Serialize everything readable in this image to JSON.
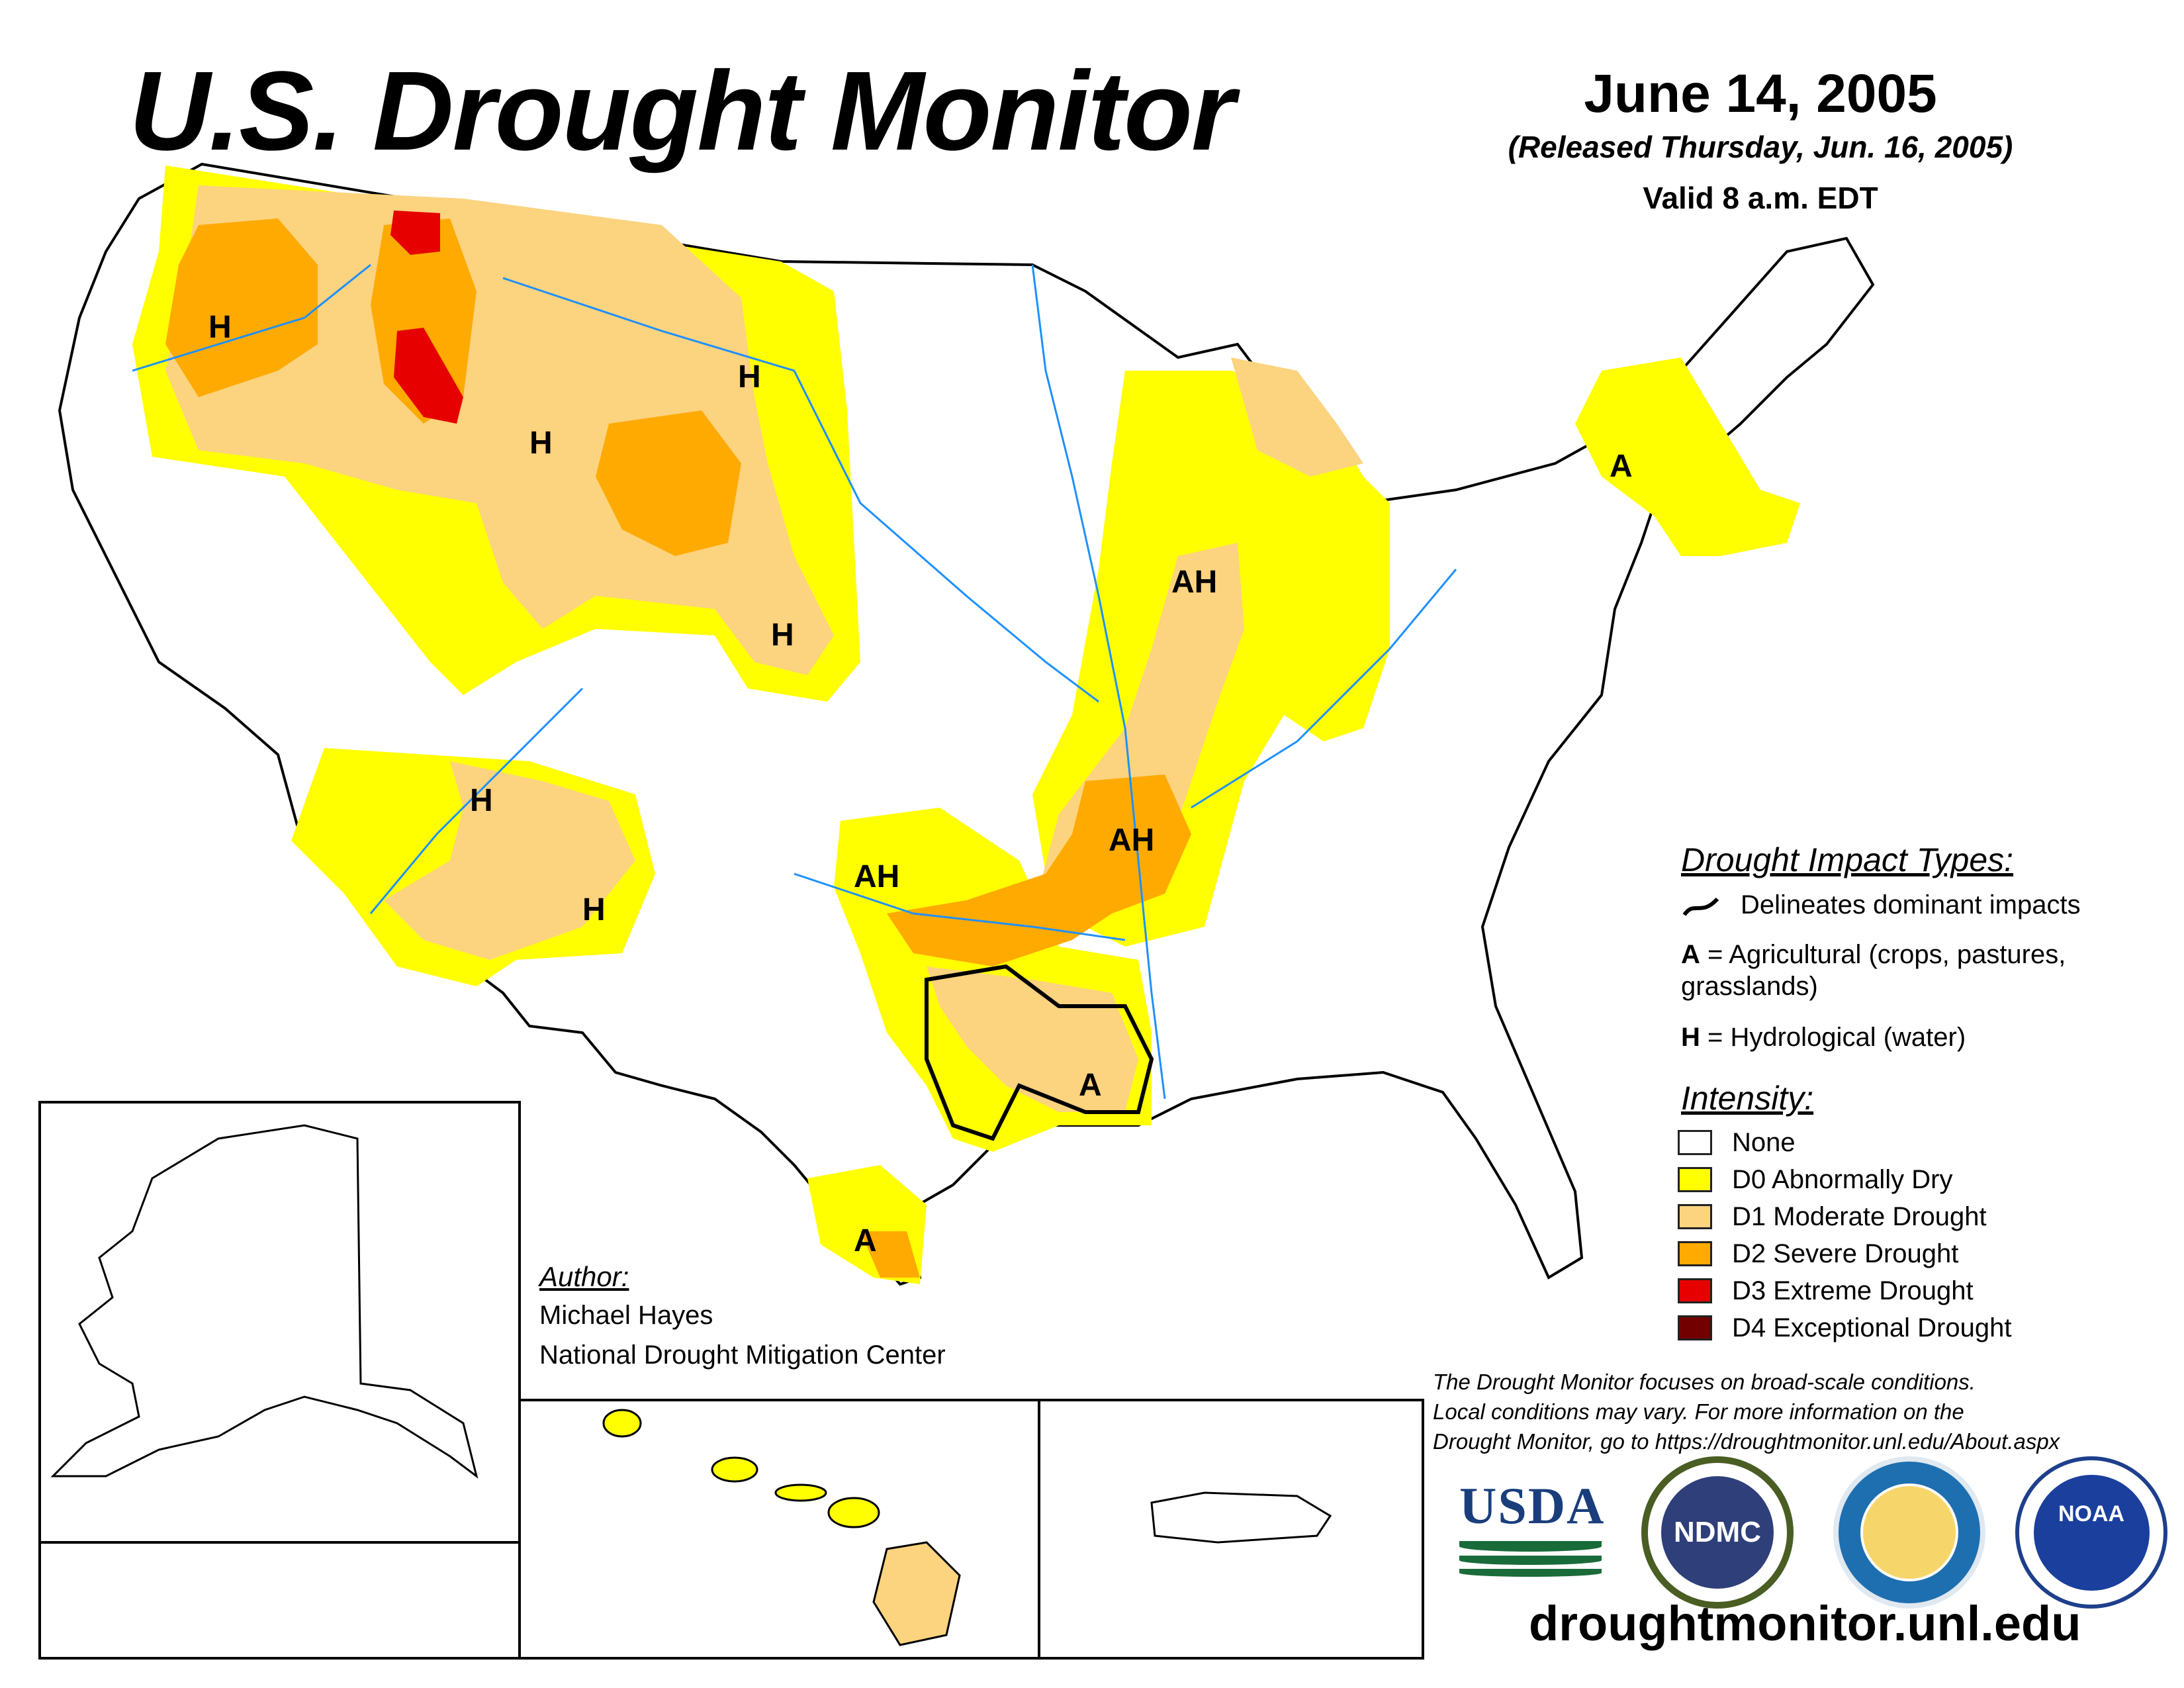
{
  "header": {
    "title": "U.S. Drought Monitor",
    "date": "June 14, 2005",
    "released": "(Released Thursday, Jun. 16, 2005)",
    "valid": "Valid 8 a.m. EDT"
  },
  "map_labels": {
    "h": "H",
    "ah": "AH",
    "a": "A"
  },
  "impact_legend": {
    "title": "Drought Impact Types:",
    "delineates": "Delineates dominant impacts",
    "agricultural_key": "A",
    "agricultural_text": " = Agricultural (crops, pastures,",
    "agricultural_text2": "grasslands)",
    "hydrological_key": "H",
    "hydrological_text": " = Hydrological (water)"
  },
  "intensity_legend": {
    "title": "Intensity:",
    "items": [
      {
        "label": "None",
        "color": "#ffffff"
      },
      {
        "label": "D0 Abnormally Dry",
        "color": "#ffff00"
      },
      {
        "label": "D1 Moderate Drought",
        "color": "#fcd37f"
      },
      {
        "label": "D2 Severe Drought",
        "color": "#ffaa00"
      },
      {
        "label": "D3 Extreme Drought",
        "color": "#e60000"
      },
      {
        "label": "D4 Exceptional Drought",
        "color": "#730000"
      }
    ]
  },
  "author": {
    "heading": "Author:",
    "name": "Michael Hayes",
    "org": "National Drought Mitigation Center"
  },
  "disclaimer": {
    "line1": "The Drought Monitor focuses on broad-scale conditions.",
    "line2": "Local conditions may vary. For more information on the",
    "line3": "Drought Monitor, go to https://droughtmonitor.unl.edu/About.aspx"
  },
  "logos": {
    "usda": "USDA",
    "ndmc": "NDMC",
    "noaa": "NOAA"
  },
  "website": "droughtmonitor.unl.edu",
  "colors": {
    "d0": "#ffff00",
    "d1": "#fcd37f",
    "d2": "#ffaa00",
    "d3": "#e60000",
    "d4": "#730000",
    "water": "#1e90ff"
  }
}
